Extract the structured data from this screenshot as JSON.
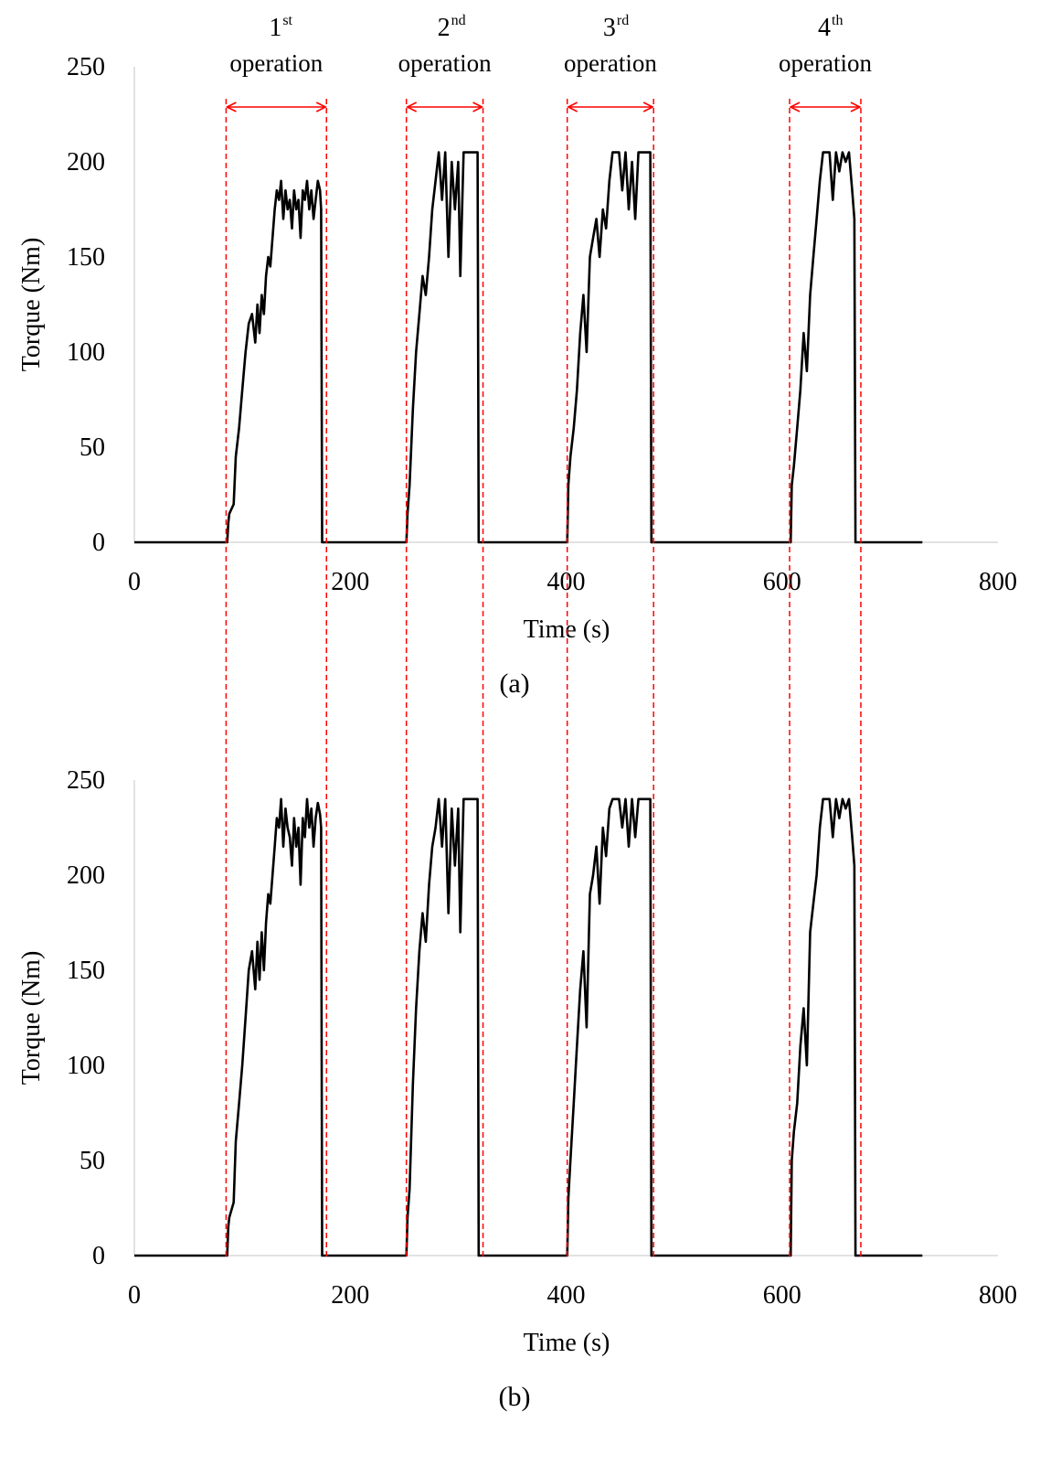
{
  "colors": {
    "trace": "#000000",
    "axis": "#d9d9d9",
    "marker": "#ff0000"
  },
  "operations": [
    {
      "number": "1",
      "suffix": "st",
      "word": "operation",
      "x_start": 85,
      "x_end": 178
    },
    {
      "number": "2",
      "suffix": "nd",
      "word": "operation",
      "x_start": 252,
      "x_end": 323
    },
    {
      "number": "3",
      "suffix": "rd",
      "word": "operation",
      "x_start": 401,
      "x_end": 481
    },
    {
      "number": "4",
      "suffix": "th",
      "word": "operation",
      "x_start": 607,
      "x_end": 673
    }
  ],
  "chart_data": [
    {
      "type": "line",
      "panel_label": "(a)",
      "xlabel": "Time (s)",
      "ylabel": "Torque (Nm)",
      "xlim": [
        0,
        800
      ],
      "ylim": [
        0,
        250
      ],
      "xticks": [
        0,
        200,
        400,
        600,
        800
      ],
      "yticks": [
        0,
        50,
        100,
        150,
        200,
        250
      ],
      "grid": false,
      "series": [
        {
          "x": [
            0,
            86,
            87,
            88,
            92,
            94,
            97,
            100,
            103,
            106,
            109,
            112,
            114,
            116,
            118,
            120,
            122,
            124,
            126,
            128,
            130,
            132,
            134,
            136,
            138,
            140,
            142,
            144,
            146,
            148,
            150,
            152,
            154,
            156,
            158,
            160,
            162,
            164,
            166,
            168,
            170,
            172,
            173,
            174,
            252,
            253,
            255,
            258,
            261,
            264,
            267,
            270,
            273,
            276,
            279,
            282,
            285,
            288,
            291,
            294,
            297,
            300,
            302,
            305,
            308,
            311,
            314,
            317,
            318,
            319,
            401,
            402,
            404,
            407,
            410,
            413,
            416,
            419,
            422,
            425,
            428,
            431,
            434,
            437,
            440,
            443,
            446,
            449,
            452,
            455,
            458,
            461,
            464,
            467,
            470,
            473,
            476,
            478,
            479,
            608,
            609,
            611,
            614,
            617,
            620,
            623,
            626,
            629,
            632,
            635,
            638,
            641,
            644,
            647,
            650,
            653,
            656,
            659,
            662,
            665,
            667,
            668,
            730
          ],
          "y": [
            0,
            0,
            10,
            15,
            20,
            45,
            60,
            80,
            100,
            115,
            120,
            105,
            125,
            110,
            130,
            120,
            140,
            150,
            145,
            160,
            175,
            185,
            180,
            190,
            170,
            185,
            175,
            180,
            165,
            185,
            175,
            180,
            160,
            185,
            180,
            190,
            175,
            185,
            170,
            180,
            190,
            185,
            175,
            0,
            0,
            15,
            30,
            70,
            100,
            120,
            140,
            130,
            150,
            175,
            190,
            205,
            180,
            205,
            150,
            200,
            175,
            200,
            140,
            205,
            205,
            205,
            205,
            205,
            205,
            0,
            0,
            30,
            45,
            60,
            80,
            110,
            130,
            100,
            150,
            160,
            170,
            150,
            175,
            165,
            190,
            205,
            205,
            205,
            185,
            205,
            175,
            200,
            170,
            205,
            205,
            205,
            205,
            205,
            0,
            0,
            30,
            40,
            60,
            80,
            110,
            90,
            130,
            150,
            170,
            190,
            205,
            205,
            205,
            180,
            205,
            195,
            205,
            200,
            205,
            185,
            170,
            0,
            0
          ]
        }
      ]
    },
    {
      "type": "line",
      "panel_label": "(b)",
      "xlabel": "Time (s)",
      "ylabel": "Torque (Nm)",
      "xlim": [
        0,
        800
      ],
      "ylim": [
        0,
        250
      ],
      "xticks": [
        0,
        200,
        400,
        600,
        800
      ],
      "yticks": [
        0,
        50,
        100,
        150,
        200,
        250
      ],
      "grid": false,
      "series": [
        {
          "x": [
            0,
            86,
            87,
            88,
            92,
            94,
            97,
            100,
            103,
            106,
            109,
            112,
            114,
            116,
            118,
            120,
            122,
            124,
            126,
            128,
            130,
            132,
            134,
            136,
            138,
            140,
            142,
            144,
            146,
            148,
            150,
            152,
            154,
            156,
            158,
            160,
            162,
            164,
            166,
            168,
            170,
            172,
            173,
            174,
            252,
            253,
            255,
            258,
            261,
            264,
            267,
            270,
            273,
            276,
            279,
            282,
            285,
            288,
            291,
            294,
            297,
            300,
            302,
            305,
            308,
            311,
            314,
            317,
            318,
            319,
            401,
            402,
            404,
            407,
            410,
            413,
            416,
            419,
            422,
            425,
            428,
            431,
            434,
            437,
            440,
            443,
            446,
            449,
            452,
            455,
            458,
            461,
            464,
            467,
            470,
            473,
            476,
            478,
            479,
            608,
            609,
            611,
            614,
            617,
            620,
            623,
            626,
            629,
            632,
            635,
            638,
            641,
            644,
            647,
            650,
            653,
            656,
            659,
            662,
            665,
            667,
            668,
            730
          ],
          "y": [
            0,
            0,
            15,
            20,
            28,
            60,
            80,
            100,
            125,
            150,
            160,
            140,
            165,
            145,
            170,
            150,
            175,
            190,
            185,
            200,
            215,
            230,
            225,
            240,
            215,
            235,
            225,
            220,
            205,
            230,
            215,
            225,
            195,
            230,
            220,
            240,
            225,
            235,
            215,
            230,
            238,
            232,
            225,
            0,
            0,
            20,
            35,
            90,
            130,
            160,
            180,
            165,
            195,
            215,
            225,
            240,
            215,
            240,
            180,
            235,
            205,
            235,
            170,
            240,
            240,
            240,
            240,
            240,
            240,
            0,
            0,
            30,
            50,
            80,
            110,
            140,
            160,
            120,
            190,
            200,
            215,
            185,
            225,
            210,
            235,
            240,
            240,
            240,
            225,
            240,
            215,
            240,
            220,
            240,
            240,
            240,
            240,
            240,
            0,
            0,
            50,
            65,
            80,
            110,
            130,
            100,
            170,
            185,
            200,
            225,
            240,
            240,
            240,
            220,
            240,
            230,
            240,
            235,
            240,
            220,
            205,
            0,
            0
          ]
        }
      ]
    }
  ]
}
